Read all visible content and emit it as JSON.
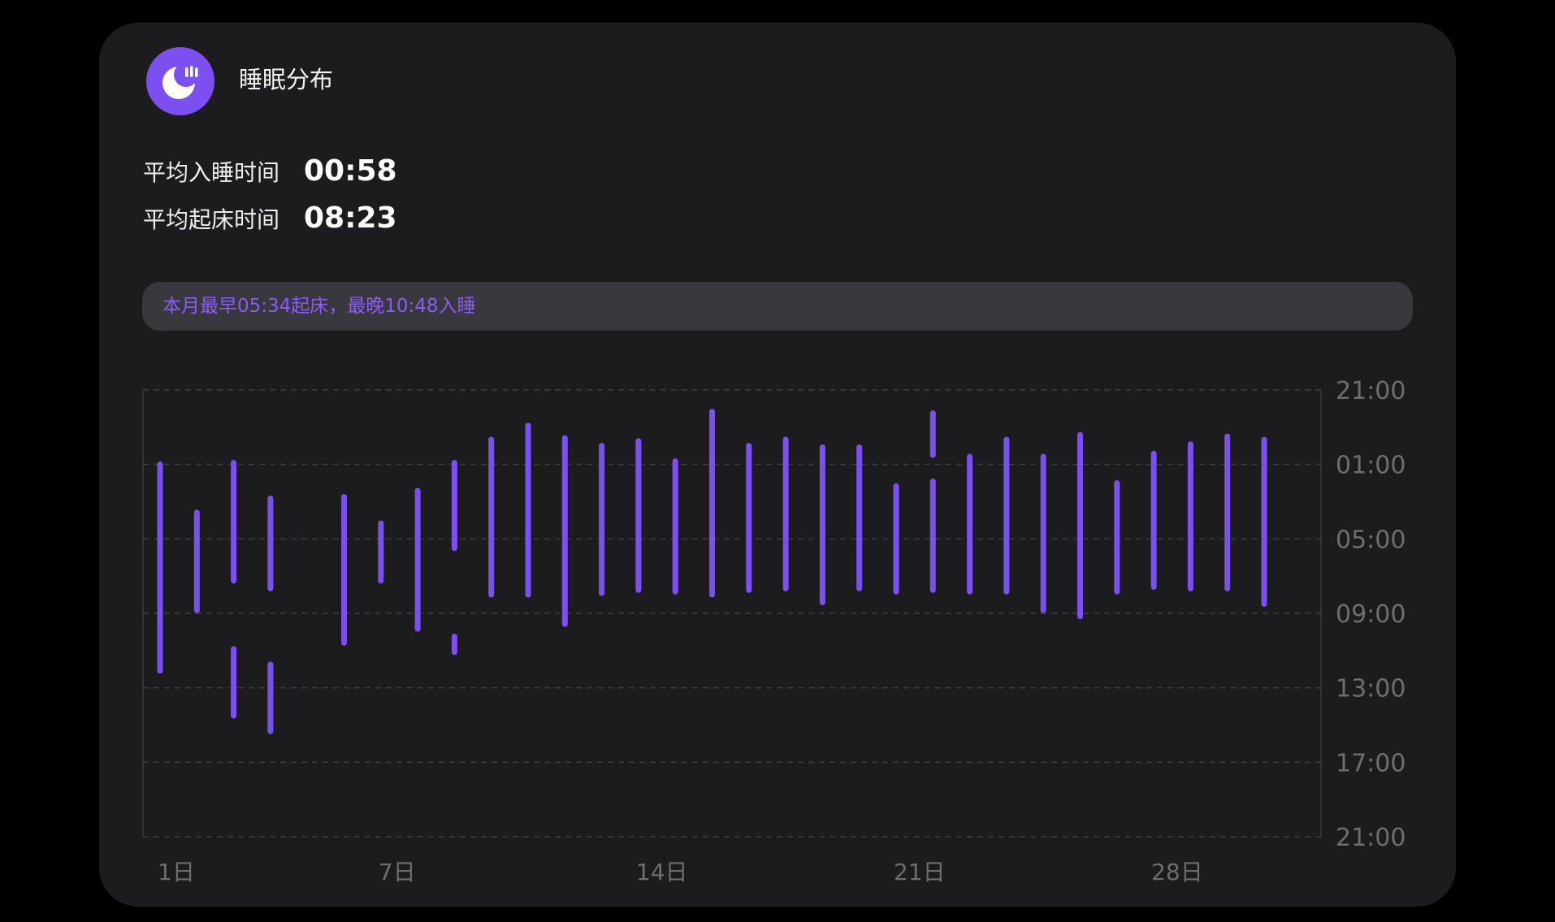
{
  "header": {
    "icon": "moon-sleep-icon",
    "title": "睡眠分布",
    "accent_color": "#7c4ff0"
  },
  "stats": {
    "avg_sleep_label": "平均入睡时间",
    "avg_sleep_value": "00:58",
    "avg_wake_label": "平均起床时间",
    "avg_wake_value": "08:23"
  },
  "banner": {
    "text": "本月最早05:34起床，最晚10:48入睡"
  },
  "chart_data": {
    "type": "bar",
    "subtype": "floating-range",
    "bar_color": "#7c4ff0",
    "grid": "dashed-horizontal",
    "y_axis_position": "right",
    "y_tick_labels": [
      "21:00",
      "01:00",
      "05:00",
      "09:00",
      "13:00",
      "17:00",
      "21:00"
    ],
    "y_tick_hours_since_21": [
      0,
      4,
      8,
      12,
      16,
      20,
      24
    ],
    "x_tick_labels": [
      {
        "day": 1,
        "label": "1日"
      },
      {
        "day": 7,
        "label": "7日"
      },
      {
        "day": 14,
        "label": "14日"
      },
      {
        "day": 21,
        "label": "21日"
      },
      {
        "day": 28,
        "label": "28日"
      }
    ],
    "segments": [
      {
        "day": 1,
        "start": "01:00",
        "end": "12:05"
      },
      {
        "day": 2,
        "start": "03:35",
        "end": "08:50"
      },
      {
        "day": 3,
        "start": "00:55",
        "end": "07:15"
      },
      {
        "day": 3,
        "start": "10:55",
        "end": "14:30"
      },
      {
        "day": 4,
        "start": "02:50",
        "end": "07:40"
      },
      {
        "day": 4,
        "start": "11:45",
        "end": "15:20"
      },
      {
        "day": 6,
        "start": "02:45",
        "end": "10:35"
      },
      {
        "day": 7,
        "start": "04:10",
        "end": "07:15"
      },
      {
        "day": 8,
        "start": "02:25",
        "end": "09:50"
      },
      {
        "day": 9,
        "start": "00:55",
        "end": "05:30"
      },
      {
        "day": 9,
        "start": "10:15",
        "end": "11:05"
      },
      {
        "day": 10,
        "start": "23:40",
        "end": "08:00"
      },
      {
        "day": 11,
        "start": "22:55",
        "end": "08:00"
      },
      {
        "day": 12,
        "start": "23:35",
        "end": "09:35"
      },
      {
        "day": 13,
        "start": "00:00",
        "end": "07:55"
      },
      {
        "day": 14,
        "start": "23:45",
        "end": "07:45"
      },
      {
        "day": 15,
        "start": "00:50",
        "end": "07:50"
      },
      {
        "day": 16,
        "start": "22:10",
        "end": "08:00"
      },
      {
        "day": 17,
        "start": "00:00",
        "end": "07:45"
      },
      {
        "day": 18,
        "start": "23:40",
        "end": "07:40"
      },
      {
        "day": 19,
        "start": "00:05",
        "end": "08:25"
      },
      {
        "day": 20,
        "start": "00:05",
        "end": "07:40"
      },
      {
        "day": 21,
        "start": "02:10",
        "end": "07:50"
      },
      {
        "day": 22,
        "start": "22:15",
        "end": "00:30"
      },
      {
        "day": 22,
        "start": "01:55",
        "end": "07:45"
      },
      {
        "day": 23,
        "start": "00:35",
        "end": "07:50"
      },
      {
        "day": 24,
        "start": "23:40",
        "end": "07:50"
      },
      {
        "day": 25,
        "start": "00:35",
        "end": "08:50"
      },
      {
        "day": 26,
        "start": "23:25",
        "end": "09:10"
      },
      {
        "day": 27,
        "start": "02:00",
        "end": "07:50"
      },
      {
        "day": 28,
        "start": "00:25",
        "end": "07:35"
      },
      {
        "day": 29,
        "start": "23:55",
        "end": "07:40"
      },
      {
        "day": 30,
        "start": "23:30",
        "end": "07:40"
      },
      {
        "day": 31,
        "start": "23:40",
        "end": "08:30"
      }
    ]
  }
}
